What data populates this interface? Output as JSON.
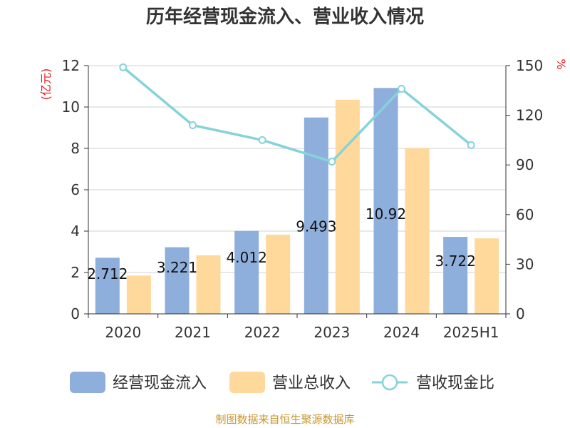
{
  "chart_data": {
    "type": "bar",
    "title": "历年经营现金流入、营业收入情况",
    "categories": [
      "2020",
      "2021",
      "2022",
      "2023",
      "2024",
      "2025H1"
    ],
    "series": [
      {
        "name": "经营现金流入",
        "kind": "bar",
        "axis": "left",
        "color": "#8eaedb",
        "values": [
          2.712,
          3.221,
          4.012,
          9.493,
          10.92,
          3.722
        ],
        "labels": [
          "2.712",
          "3.221",
          "4.012",
          "9.493",
          "10.92",
          "3.722"
        ]
      },
      {
        "name": "营业总收入",
        "kind": "bar",
        "axis": "left",
        "color": "#fed99b",
        "values": [
          1.85,
          2.83,
          3.83,
          10.35,
          8.0,
          3.65
        ]
      },
      {
        "name": "营收现金比",
        "kind": "line",
        "axis": "right",
        "color": "#86d3d9",
        "values": [
          149,
          114,
          105,
          92,
          136,
          102
        ]
      }
    ],
    "y_left": {
      "label": "(亿元)",
      "min": 0,
      "max": 12,
      "ticks": [
        0,
        2,
        4,
        6,
        8,
        10,
        12
      ]
    },
    "y_right": {
      "label": "%",
      "min": 0,
      "max": 150,
      "ticks": [
        0,
        30,
        60,
        90,
        120,
        150
      ]
    },
    "grid": true,
    "legend_position": "bottom"
  },
  "source": "制图数据来自恒生聚源数据库"
}
